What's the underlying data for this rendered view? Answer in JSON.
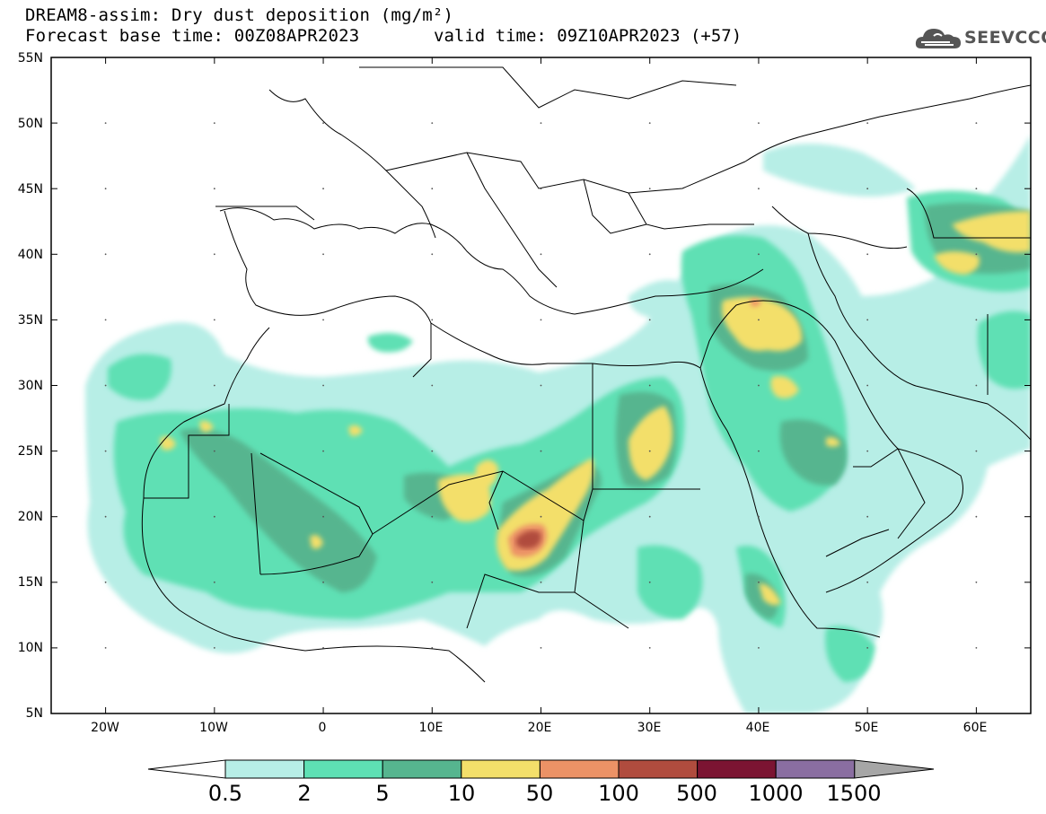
{
  "header": {
    "title_line1": "DREAM8-assim: Dry dust deposition (mg/m²)",
    "title_line2": "Forecast base time: 00Z08APR2023",
    "valid_time": "valid time: 09Z10APR2023 (+57)"
  },
  "logo": {
    "text": "SEEVCCC",
    "icon": "cloud-icon"
  },
  "map": {
    "lon_range": [
      -25,
      65
    ],
    "lat_range": [
      5,
      55
    ],
    "lat_labels": [
      "55N",
      "50N",
      "45N",
      "40N",
      "35N",
      "30N",
      "25N",
      "20N",
      "15N",
      "10N",
      "5N"
    ],
    "lon_labels": [
      "20W",
      "10W",
      "0",
      "10E",
      "20E",
      "30E",
      "40E",
      "50E",
      "60E"
    ]
  },
  "colorbar": {
    "labels": [
      "0.5",
      "2",
      "5",
      "10",
      "50",
      "100",
      "500",
      "1000",
      "1500"
    ],
    "colors": [
      "#b7eee6",
      "#5ee0b4",
      "#56b58f",
      "#f3df6a",
      "#ec9266",
      "#b04c3e",
      "#7b1432",
      "#8a6ea1"
    ],
    "low_arrow_color": "#ffffff",
    "high_arrow_color": "#a6a6a6"
  }
}
